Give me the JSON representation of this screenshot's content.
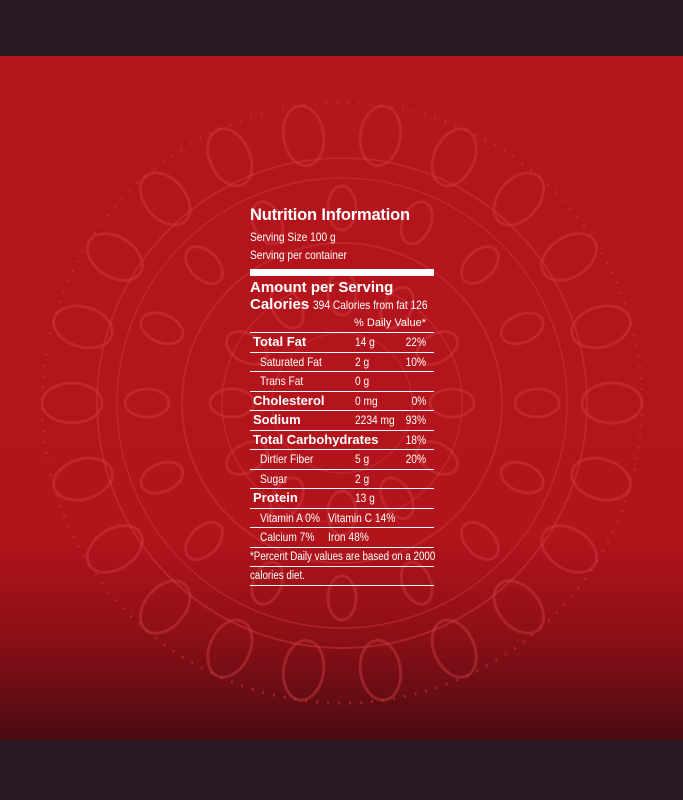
{
  "colors": {
    "background": "#2b1a24",
    "panel_red": "#b5151c",
    "text": "#ffffff"
  },
  "label": {
    "title": "Nutrition Information",
    "serving_size": "Serving Size 100 g",
    "serving_per_container": "Serving per container",
    "amount_per_serving": "Amount per Serving",
    "calories_label": "Calories",
    "calories_text": "394 Calories from fat 126",
    "daily_value_header": "% Daily Value*",
    "rows": [
      {
        "name": "Total Fat",
        "amount": "14 g",
        "percent": "22%"
      },
      {
        "name": "Saturated Fat",
        "amount": "2 g",
        "percent": "10%"
      },
      {
        "name": "Trans Fat",
        "amount": "0 g",
        "percent": ""
      },
      {
        "name": "Cholesterol",
        "amount": "0 mg",
        "percent": "0%"
      },
      {
        "name": "Sodium",
        "amount": "2234 mg",
        "percent": "93%"
      },
      {
        "name": "Total Carbohydrates",
        "amount": "",
        "percent": "18%"
      },
      {
        "name": "Dirtier Fiber",
        "amount": "5 g",
        "percent": "20%"
      },
      {
        "name": "Sugar",
        "amount": "2 g",
        "percent": ""
      },
      {
        "name": "Protein",
        "amount": "13 g",
        "percent": ""
      }
    ],
    "vitamins": [
      {
        "left": "Vitamin A 0%",
        "right": "Vitamin C 14%"
      },
      {
        "left": "Calcium 7%",
        "right": "Iron 48%"
      }
    ],
    "footnote_1": "*Percent Daily values are based on a 2000",
    "footnote_2": "calories diet."
  }
}
